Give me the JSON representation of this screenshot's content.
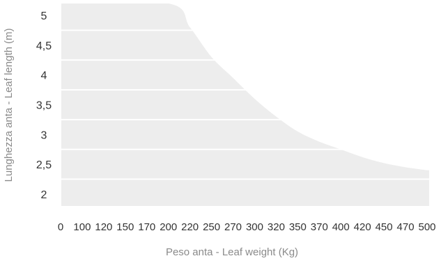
{
  "chart_data": {
    "type": "area",
    "title": "",
    "xlabel": "Peso anta - Leaf weight (Kg)",
    "ylabel": "Lunghezza anta - Leaf length (m)",
    "categories": [
      "0",
      "100",
      "120",
      "150",
      "170",
      "200",
      "220",
      "250",
      "270",
      "300",
      "320",
      "350",
      "370",
      "400",
      "420",
      "450",
      "470",
      "500"
    ],
    "y_ticks": [
      "2",
      "2,5",
      "3",
      "3,5",
      "4",
      "4,5",
      "5"
    ],
    "ylim": [
      1.8,
      5.2
    ],
    "grid": "horizontal",
    "series": [
      {
        "x": [
          "0",
          "200",
          "220",
          "250",
          "270",
          "300",
          "320",
          "350",
          "370",
          "400",
          "420",
          "450",
          "470",
          "500"
        ],
        "values": [
          5.2,
          5.2,
          4.8,
          4.3,
          3.95,
          3.6,
          3.3,
          3.05,
          2.88,
          2.75,
          2.62,
          2.52,
          2.45,
          2.4
        ]
      }
    ],
    "colors": {
      "area": "#ededed",
      "grid": "#ffffff",
      "text": "#333333",
      "axis_label": "#8a8a8a"
    }
  }
}
